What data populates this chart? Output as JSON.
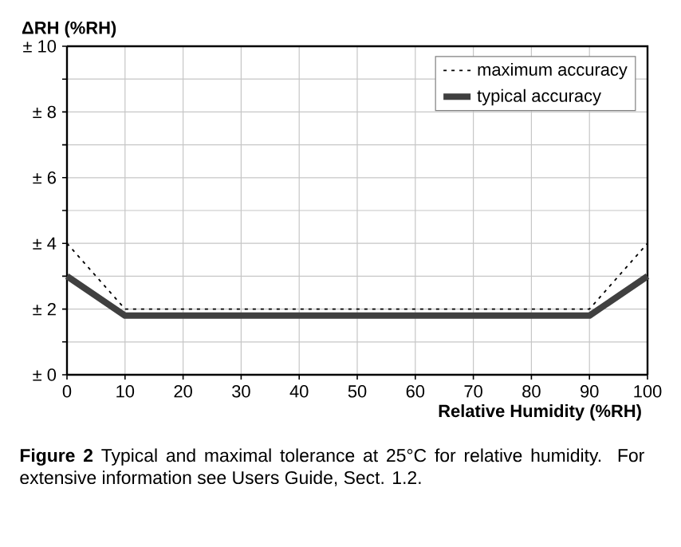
{
  "chart_data": {
    "type": "line",
    "xlabel": "Relative Humidity (%RH)",
    "ylabel": "ΔRH (%RH)",
    "x": [
      0,
      10,
      90,
      100
    ],
    "series": [
      {
        "name": "maximum accuracy",
        "color": "#000000",
        "line_style": "dotted",
        "values": [
          4,
          2,
          2,
          4
        ]
      },
      {
        "name": "typical accuracy",
        "color": "#404040",
        "line_style": "solid",
        "values": [
          3,
          1.8,
          1.8,
          3
        ]
      }
    ],
    "xlim": [
      0,
      100
    ],
    "xticks": [
      0,
      10,
      20,
      30,
      40,
      50,
      60,
      70,
      80,
      90,
      100
    ],
    "ylim": [
      0,
      10
    ],
    "yticks": [
      {
        "value": 0,
        "label": "± 0"
      },
      {
        "value": 1,
        "label": null
      },
      {
        "value": 2,
        "label": "± 2"
      },
      {
        "value": 3,
        "label": null
      },
      {
        "value": 4,
        "label": "± 4"
      },
      {
        "value": 5,
        "label": null
      },
      {
        "value": 6,
        "label": "± 6"
      },
      {
        "value": 7,
        "label": null
      },
      {
        "value": 8,
        "label": "± 8"
      },
      {
        "value": 9,
        "label": null
      },
      {
        "value": 10,
        "label": "± 10"
      }
    ],
    "grid": true,
    "legend": "top right",
    "marker": "none",
    "annotations": [
      "**Figure 2**  Typical and maximal tolerance at 25°C for relative humidity. For extensive information see Users Guide, Sect. 1.2."
    ]
  }
}
